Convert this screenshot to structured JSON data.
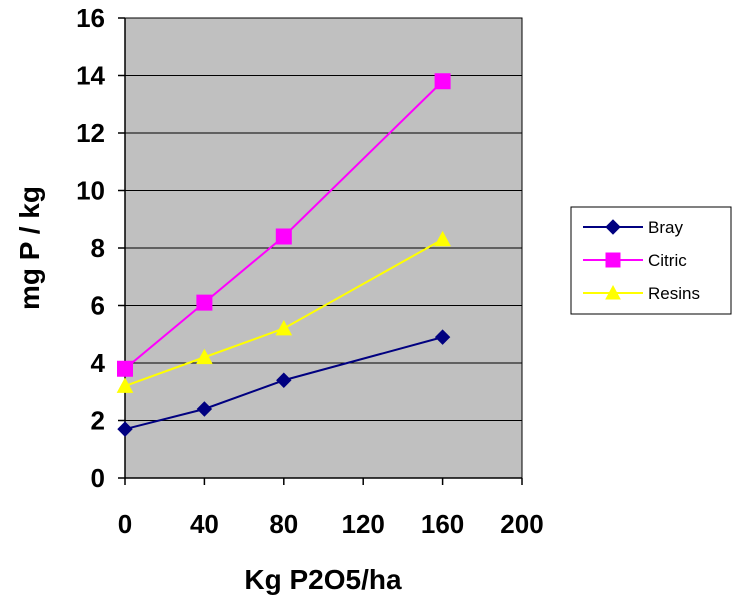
{
  "chart_data": {
    "type": "line",
    "title": "",
    "xlabel": "Kg P2O5/ha",
    "ylabel": "mg P / kg",
    "xlim": [
      0,
      200
    ],
    "ylim": [
      0,
      16
    ],
    "x_ticks": [
      0,
      40,
      80,
      120,
      160,
      200
    ],
    "y_ticks": [
      0,
      2,
      4,
      6,
      8,
      10,
      12,
      14,
      16
    ],
    "grid": "horizontal",
    "plot_background": "#c0c0c0",
    "legend_position": "right",
    "series": [
      {
        "name": "Bray",
        "color": "#000080",
        "marker": "diamond",
        "x": [
          0,
          40,
          80,
          160
        ],
        "values": [
          1.7,
          2.4,
          3.4,
          4.9
        ]
      },
      {
        "name": "Citric",
        "color": "#ff00ff",
        "marker": "square",
        "x": [
          0,
          40,
          80,
          160
        ],
        "values": [
          3.8,
          6.1,
          8.4,
          13.8
        ]
      },
      {
        "name": "Resins",
        "color": "#ffff00",
        "marker": "triangle",
        "x": [
          0,
          40,
          80,
          160
        ],
        "values": [
          3.2,
          4.2,
          5.2,
          8.3
        ]
      }
    ]
  }
}
